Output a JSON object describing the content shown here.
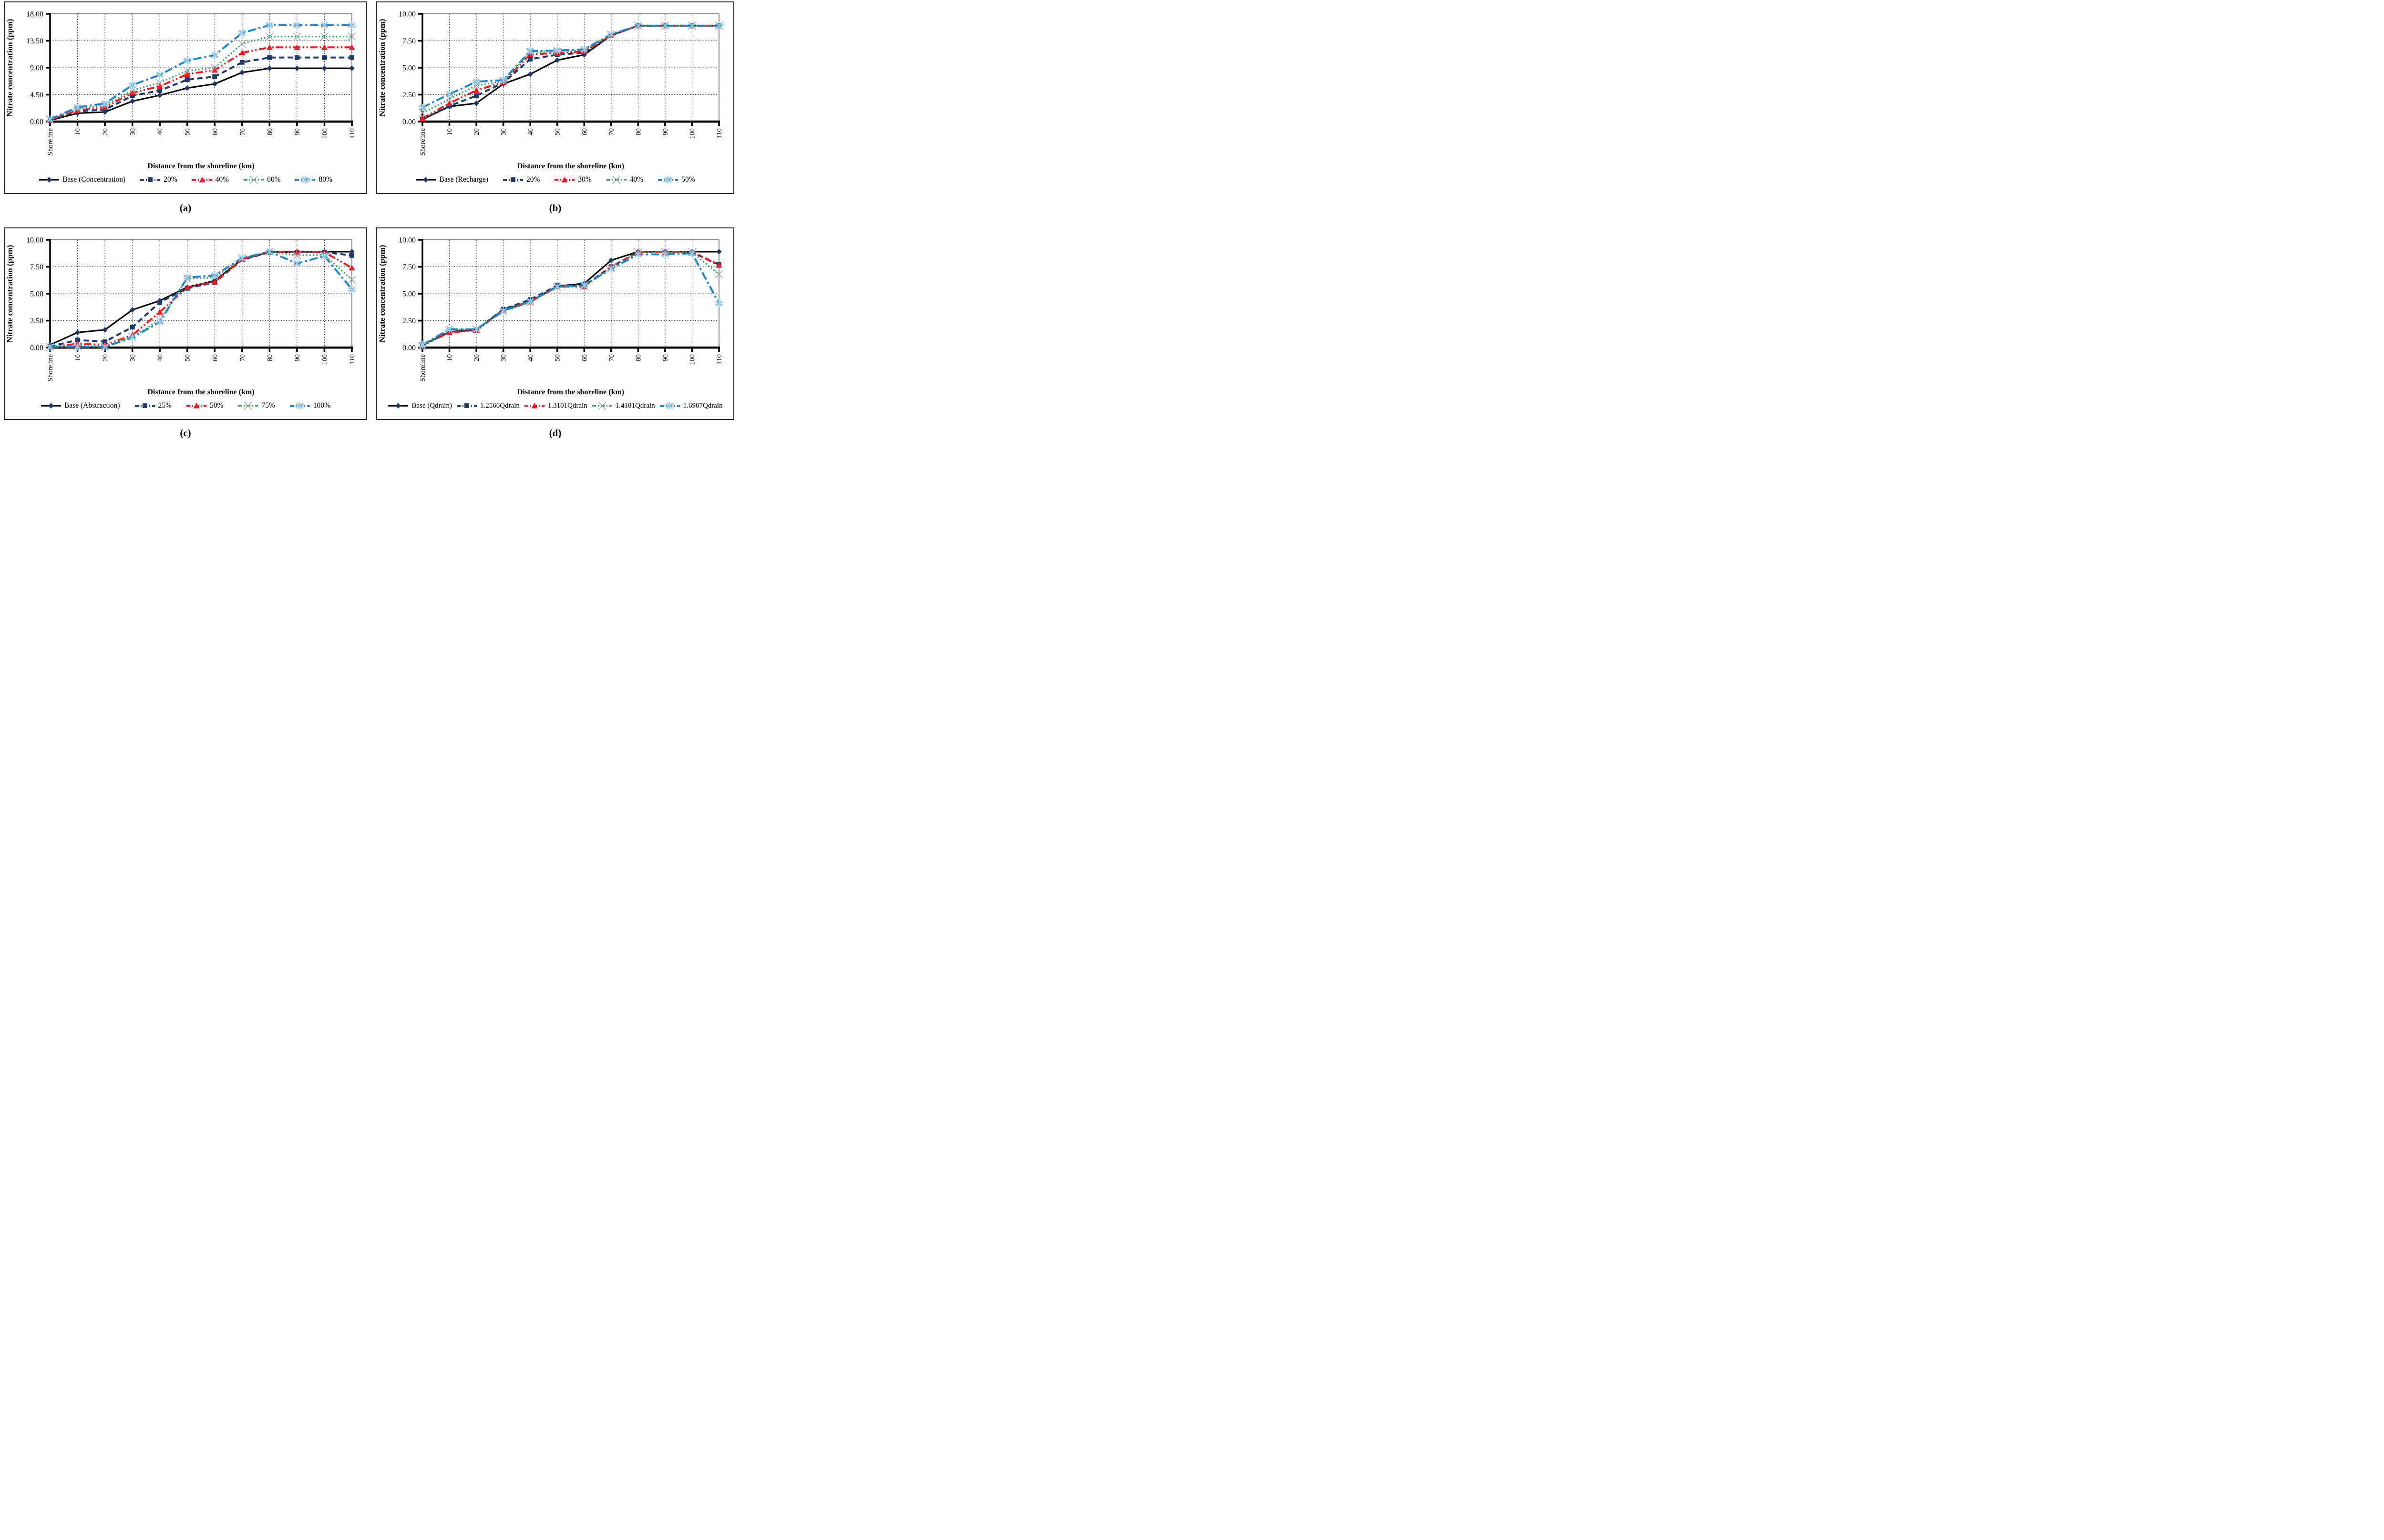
{
  "figure_caption_labels": [
    "(a)",
    "(b)",
    "(c)",
    "(d)"
  ],
  "colors": {
    "black": "#000000",
    "navy": "#1F3864",
    "red": "#EE1C25",
    "green": "#2CA05A",
    "blue": "#1E84C8",
    "gray_marker": "#8E9DAC",
    "lightblue_marker": "#8FCBEE",
    "grid": "#1a1a1a",
    "panel_border": "#2a2a2a"
  },
  "chart_data": [
    {
      "type": "line",
      "panel_label": "(a)",
      "xlabel": "Distance from the shoreline (km)",
      "ylabel": "Nitrate concentration (ppm)",
      "categories": [
        "Shoreline",
        "10",
        "20",
        "30",
        "40",
        "50",
        "60",
        "70",
        "80",
        "90",
        "100",
        "110"
      ],
      "ylim": [
        0,
        18
      ],
      "yticks": [
        0,
        4.5,
        9,
        13.5,
        18
      ],
      "ytick_labels": [
        "0.00",
        "4.50",
        "9.00",
        "13.50",
        "18.00"
      ],
      "grid": true,
      "legend_position": "bottom",
      "series": [
        {
          "name": "Base (Concentration)",
          "style": "base",
          "values": [
            0.2,
            1.4,
            1.6,
            3.4,
            4.4,
            5.6,
            6.3,
            8.2,
            8.9,
            8.9,
            8.9,
            8.9
          ]
        },
        {
          "name": "20%",
          "style": "s2",
          "values": [
            0.25,
            1.7,
            2.0,
            4.3,
            5.2,
            7.0,
            7.5,
            9.9,
            10.7,
            10.7,
            10.7,
            10.7
          ]
        },
        {
          "name": "40%",
          "style": "s3",
          "values": [
            0.3,
            1.9,
            2.4,
            4.8,
            5.9,
            7.9,
            8.6,
            11.5,
            12.4,
            12.4,
            12.4,
            12.4
          ]
        },
        {
          "name": "60%",
          "style": "s4",
          "values": [
            0.35,
            2.1,
            2.7,
            5.2,
            6.5,
            8.5,
            9.0,
            13.0,
            14.2,
            14.2,
            14.2,
            14.2
          ]
        },
        {
          "name": "80%",
          "style": "s5",
          "values": [
            0.4,
            2.4,
            3.0,
            6.1,
            7.8,
            10.2,
            11.1,
            14.8,
            16.1,
            16.1,
            16.1,
            16.1
          ]
        }
      ]
    },
    {
      "type": "line",
      "panel_label": "(b)",
      "xlabel": "Distance from the shoreline (km)",
      "ylabel": "Nitrate concentration (ppm)",
      "categories": [
        "Shoreline",
        "10",
        "20",
        "30",
        "40",
        "50",
        "60",
        "70",
        "80",
        "90",
        "100",
        "110"
      ],
      "ylim": [
        0,
        10
      ],
      "yticks": [
        0,
        2.5,
        5,
        7.5,
        10
      ],
      "ytick_labels": [
        "0.00",
        "2.50",
        "5.00",
        "7.50",
        "10.00"
      ],
      "grid": true,
      "legend_position": "bottom",
      "series": [
        {
          "name": "Base (Recharge)",
          "style": "base",
          "values": [
            0.2,
            1.4,
            1.7,
            3.5,
            4.4,
            5.7,
            6.2,
            8.0,
            8.9,
            8.9,
            8.9,
            8.9
          ]
        },
        {
          "name": "20%",
          "style": "s2",
          "values": [
            0.2,
            1.45,
            2.4,
            3.6,
            5.8,
            6.2,
            6.4,
            8.0,
            8.9,
            8.9,
            8.9,
            8.9
          ]
        },
        {
          "name": "30%",
          "style": "s3",
          "values": [
            0.3,
            1.7,
            2.9,
            3.65,
            6.25,
            6.35,
            6.5,
            8.0,
            8.9,
            8.9,
            8.9,
            8.9
          ]
        },
        {
          "name": "40%",
          "style": "s4",
          "values": [
            0.8,
            2.1,
            3.35,
            3.75,
            6.45,
            6.5,
            6.65,
            8.05,
            8.9,
            8.9,
            8.9,
            8.9
          ]
        },
        {
          "name": "50%",
          "style": "s5",
          "values": [
            1.3,
            2.55,
            3.7,
            3.85,
            6.55,
            6.6,
            6.7,
            8.1,
            8.9,
            8.9,
            8.9,
            8.9
          ]
        }
      ]
    },
    {
      "type": "line",
      "panel_label": "(c)",
      "xlabel": "Distance from the shoreline (km)",
      "ylabel": "Nitrate concentration (ppm)",
      "categories": [
        "Shoreline",
        "10",
        "20",
        "30",
        "40",
        "50",
        "60",
        "70",
        "80",
        "90",
        "100",
        "110"
      ],
      "ylim": [
        0,
        10
      ],
      "yticks": [
        0,
        2.5,
        5,
        7.5,
        10
      ],
      "ytick_labels": [
        "0.00",
        "2.50",
        "5.00",
        "7.50",
        "10.00"
      ],
      "grid": true,
      "legend_position": "bottom",
      "series": [
        {
          "name": "Base (Abstraction)",
          "style": "base",
          "values": [
            0.25,
            1.4,
            1.65,
            3.5,
            4.35,
            5.6,
            6.2,
            8.2,
            8.85,
            8.9,
            8.9,
            8.9
          ]
        },
        {
          "name": "25%",
          "style": "s2",
          "values": [
            0.1,
            0.7,
            0.55,
            1.9,
            4.2,
            5.5,
            6.05,
            8.15,
            8.85,
            8.85,
            8.85,
            8.55
          ]
        },
        {
          "name": "50%",
          "style": "s3",
          "values": [
            0.05,
            0.35,
            0.25,
            1.15,
            3.3,
            5.6,
            6.1,
            8.2,
            8.9,
            8.9,
            8.85,
            7.4
          ]
        },
        {
          "name": "75%",
          "style": "s4",
          "values": [
            0.05,
            0.15,
            0.1,
            1.0,
            2.55,
            6.4,
            6.5,
            8.3,
            8.9,
            8.55,
            8.6,
            6.3
          ]
        },
        {
          "name": "100%",
          "style": "s5",
          "values": [
            0.05,
            0.1,
            0.05,
            0.95,
            2.35,
            6.5,
            6.7,
            8.3,
            8.9,
            7.8,
            8.5,
            5.4
          ]
        }
      ]
    },
    {
      "type": "line",
      "panel_label": "(d)",
      "xlabel": "Distance from the shoreline (km)",
      "ylabel": "Nitrate concentration (ppm)",
      "categories": [
        "Shoreline",
        "10",
        "20",
        "30",
        "40",
        "50",
        "60",
        "70",
        "80",
        "90",
        "100",
        "110"
      ],
      "ylim": [
        0,
        10
      ],
      "yticks": [
        0,
        2.5,
        5,
        7.5,
        10
      ],
      "ytick_labels": [
        "0.00",
        "2.50",
        "5.00",
        "7.50",
        "10.00"
      ],
      "grid": true,
      "legend_position": "bottom",
      "series": [
        {
          "name": "Base (Qdrain)",
          "style": "base",
          "values": [
            0.25,
            1.45,
            1.65,
            3.5,
            4.3,
            5.7,
            5.95,
            8.1,
            8.9,
            8.9,
            8.9,
            8.9
          ]
        },
        {
          "name": "1.2566Qdrain",
          "style": "s2",
          "values": [
            0.25,
            1.45,
            1.65,
            3.55,
            4.45,
            5.75,
            5.75,
            7.5,
            8.85,
            8.85,
            8.85,
            7.7
          ]
        },
        {
          "name": "1.3101Qdrain",
          "style": "s3",
          "values": [
            0.2,
            1.4,
            1.6,
            3.45,
            4.25,
            5.65,
            5.65,
            7.5,
            8.85,
            8.85,
            8.85,
            7.65
          ]
        },
        {
          "name": "1.4181Qdrain",
          "style": "s4",
          "values": [
            0.15,
            1.65,
            1.7,
            3.35,
            4.2,
            5.6,
            5.7,
            7.4,
            8.85,
            8.85,
            8.85,
            6.8
          ]
        },
        {
          "name": "1.6907Qdrain",
          "style": "s5",
          "values": [
            0.25,
            1.7,
            1.7,
            3.4,
            4.3,
            5.65,
            5.8,
            7.3,
            8.65,
            8.65,
            8.75,
            4.1
          ]
        }
      ]
    }
  ]
}
